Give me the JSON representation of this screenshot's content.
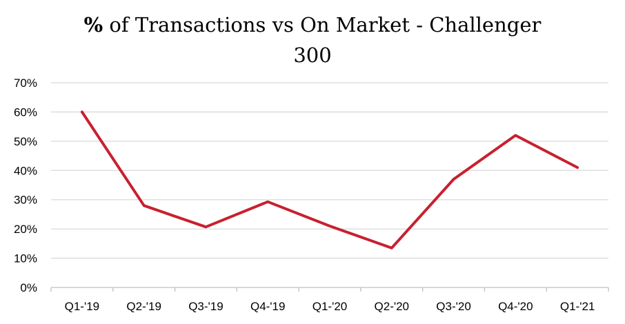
{
  "chart_data": {
    "type": "line",
    "title_prefix": "%",
    "title_line1": " of Transactions vs On Market - Challenger",
    "title_line2": "300",
    "categories": [
      "Q1-'19",
      "Q2-'19",
      "Q3-'19",
      "Q4-'19",
      "Q1-'20",
      "Q2-'20",
      "Q3-'20",
      "Q4-'20",
      "Q1-'21"
    ],
    "series": [
      {
        "values": [
          0.6,
          0.28,
          0.207,
          0.293,
          0.21,
          0.135,
          0.37,
          0.52,
          0.41
        ],
        "color": "#c8202f"
      }
    ],
    "ylim": [
      0,
      0.7
    ],
    "yticks": [
      0,
      0.1,
      0.2,
      0.3,
      0.4,
      0.5,
      0.6,
      0.7
    ],
    "ytick_labels": [
      "0%",
      "10%",
      "20%",
      "30%",
      "40%",
      "50%",
      "60%",
      "70%"
    ],
    "grid": true,
    "gridColor": "#d9d9d9",
    "axisColor": "#bfbfbf",
    "legend": "none"
  }
}
